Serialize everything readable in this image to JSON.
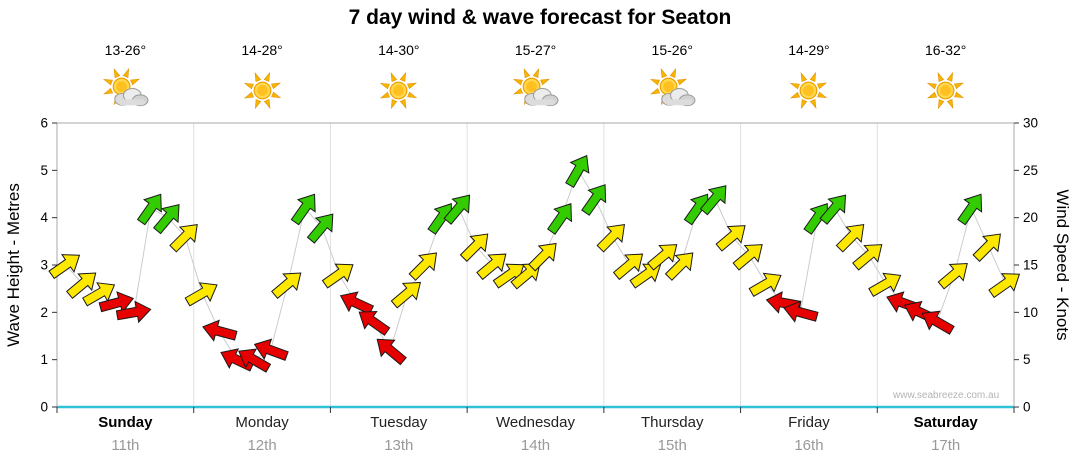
{
  "title": "7 day wind & wave forecast for Seaton",
  "watermark": "www.seabreeze.com.au",
  "palette": {
    "arrow_yellow": "#ffe800",
    "arrow_red": "#e60000",
    "arrow_green": "#33cc00",
    "axis_cyan": "#2fc1d8",
    "frame_gray": "#a9a9a9",
    "grid_gray": "#e0e0e0",
    "line_gray": "#cccccc",
    "tick_black": "#333333"
  },
  "days": [
    {
      "name": "Sunday",
      "date": "11th",
      "temp": "13-26°",
      "icon": "partly-cloudy",
      "emphasis": true
    },
    {
      "name": "Monday",
      "date": "12th",
      "temp": "14-28°",
      "icon": "sunny",
      "emphasis": false
    },
    {
      "name": "Tuesday",
      "date": "13th",
      "temp": "14-30°",
      "icon": "sunny",
      "emphasis": false
    },
    {
      "name": "Wednesday",
      "date": "14th",
      "temp": "15-27°",
      "icon": "partly-cloudy",
      "emphasis": false
    },
    {
      "name": "Thursday",
      "date": "15th",
      "temp": "15-26°",
      "icon": "partly-cloudy",
      "emphasis": false
    },
    {
      "name": "Friday",
      "date": "16th",
      "temp": "14-29°",
      "icon": "sunny",
      "emphasis": false
    },
    {
      "name": "Saturday",
      "date": "17th",
      "temp": "16-32°",
      "icon": "sunny",
      "emphasis": true
    }
  ],
  "chart_data": {
    "type": "scatter",
    "title": "7 day wind & wave forecast for Seaton",
    "x_axis": {
      "categories": [
        "Sunday 11th",
        "Monday 12th",
        "Tuesday 13th",
        "Wednesday 14th",
        "Thursday 15th",
        "Friday 16th",
        "Saturday 17th"
      ]
    },
    "y_axis_left": {
      "label": "Wave Height - Metres",
      "range": [
        0,
        6
      ],
      "ticks": [
        0,
        1,
        2,
        3,
        4,
        5,
        6
      ]
    },
    "y_axis_right": {
      "label": "Wind Speed - Knots",
      "range": [
        0,
        30
      ],
      "ticks": [
        0,
        5,
        10,
        15,
        20,
        25,
        30
      ]
    },
    "points_per_day": 8,
    "marker": "wind-arrow",
    "series": [
      {
        "name": "Wind speed (knots), arrow markers colored by strength, gray line = wave trend",
        "days": [
          {
            "day": "Sunday",
            "knots": [
              15,
              13,
              12,
              11,
              10,
              21,
              20,
              18
            ],
            "colors": [
              "yellow",
              "yellow",
              "yellow",
              "red",
              "red",
              "green",
              "green",
              "yellow"
            ],
            "dirs_deg": [
              -35,
              -40,
              -30,
              -15,
              -10,
              -55,
              -50,
              -45
            ]
          },
          {
            "day": "Monday",
            "knots": [
              12,
              8,
              5,
              5,
              6,
              13,
              21,
              19
            ],
            "colors": [
              "yellow",
              "red",
              "red",
              "red",
              "red",
              "yellow",
              "green",
              "green"
            ],
            "dirs_deg": [
              -30,
              195,
              205,
              210,
              200,
              -40,
              -55,
              -50
            ]
          },
          {
            "day": "Tuesday",
            "knots": [
              14,
              11,
              9,
              6,
              12,
              15,
              20,
              21
            ],
            "colors": [
              "yellow",
              "red",
              "red",
              "red",
              "yellow",
              "yellow",
              "green",
              "green"
            ],
            "dirs_deg": [
              -35,
              205,
              215,
              220,
              -40,
              -45,
              -55,
              -50
            ]
          },
          {
            "day": "Wednesday",
            "knots": [
              17,
              15,
              14,
              14,
              16,
              20,
              25,
              22
            ],
            "colors": [
              "yellow",
              "yellow",
              "yellow",
              "yellow",
              "yellow",
              "green",
              "green",
              "green"
            ],
            "dirs_deg": [
              -45,
              -40,
              -35,
              -40,
              -45,
              -55,
              -60,
              -55
            ]
          },
          {
            "day": "Thursday",
            "knots": [
              18,
              15,
              14,
              16,
              15,
              21,
              22,
              18
            ],
            "colors": [
              "yellow",
              "yellow",
              "yellow",
              "yellow",
              "yellow",
              "green",
              "green",
              "yellow"
            ],
            "dirs_deg": [
              -45,
              -40,
              -35,
              -40,
              -45,
              -55,
              -50,
              -40
            ]
          },
          {
            "day": "Friday",
            "knots": [
              16,
              13,
              11,
              10,
              20,
              21,
              18,
              16
            ],
            "colors": [
              "yellow",
              "yellow",
              "red",
              "red",
              "green",
              "green",
              "yellow",
              "yellow"
            ],
            "dirs_deg": [
              -40,
              -30,
              190,
              195,
              -55,
              -50,
              -45,
              -40
            ]
          },
          {
            "day": "Saturday",
            "knots": [
              13,
              11,
              10,
              9,
              14,
              21,
              17,
              13
            ],
            "colors": [
              "yellow",
              "red",
              "red",
              "red",
              "yellow",
              "green",
              "yellow",
              "yellow"
            ],
            "dirs_deg": [
              -30,
              200,
              205,
              210,
              -40,
              -55,
              -45,
              -35
            ]
          }
        ]
      }
    ]
  }
}
